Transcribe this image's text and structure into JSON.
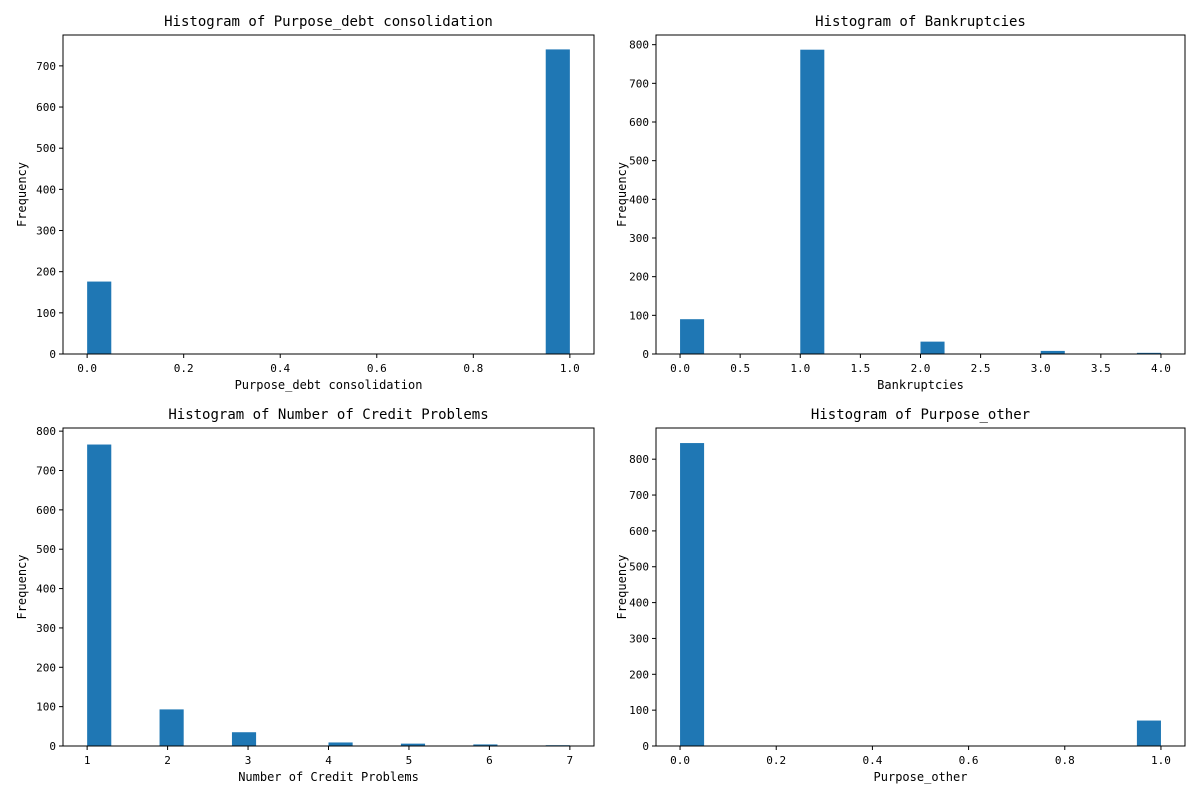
{
  "figure": {
    "bar_color": "#1f77b4"
  },
  "chart_data": [
    {
      "type": "bar",
      "title": "Histogram of Purpose_debt consolidation",
      "xlabel": "Purpose_debt consolidation",
      "ylabel": "Frequency",
      "xlim": [
        -0.05,
        1.05
      ],
      "ylim": [
        0,
        775
      ],
      "xticks": [
        0.0,
        0.2,
        0.4,
        0.6,
        0.8,
        1.0
      ],
      "xtick_labels": [
        "0.0",
        "0.2",
        "0.4",
        "0.6",
        "0.8",
        "1.0"
      ],
      "yticks": [
        0,
        100,
        200,
        300,
        400,
        500,
        600,
        700
      ],
      "ytick_labels": [
        "0",
        "100",
        "200",
        "300",
        "400",
        "500",
        "600",
        "700"
      ],
      "bins": [
        {
          "start": 0.0,
          "end": 0.05,
          "value": 176
        },
        {
          "start": 0.95,
          "end": 1.0,
          "value": 740
        }
      ],
      "grid": false
    },
    {
      "type": "bar",
      "title": "Histogram of Bankruptcies",
      "xlabel": "Bankruptcies",
      "ylabel": "Frequency",
      "xlim": [
        -0.2,
        4.2
      ],
      "ylim": [
        0,
        825
      ],
      "xticks": [
        0.0,
        0.5,
        1.0,
        1.5,
        2.0,
        2.5,
        3.0,
        3.5,
        4.0
      ],
      "xtick_labels": [
        "0.0",
        "0.5",
        "1.0",
        "1.5",
        "2.0",
        "2.5",
        "3.0",
        "3.5",
        "4.0"
      ],
      "yticks": [
        0,
        100,
        200,
        300,
        400,
        500,
        600,
        700,
        800
      ],
      "ytick_labels": [
        "0",
        "100",
        "200",
        "300",
        "400",
        "500",
        "600",
        "700",
        "800"
      ],
      "bins": [
        {
          "start": 0.0,
          "end": 0.2,
          "value": 90
        },
        {
          "start": 1.0,
          "end": 1.2,
          "value": 787
        },
        {
          "start": 2.0,
          "end": 2.2,
          "value": 32
        },
        {
          "start": 3.0,
          "end": 3.2,
          "value": 8
        },
        {
          "start": 3.8,
          "end": 4.0,
          "value": 3
        }
      ],
      "grid": false
    },
    {
      "type": "bar",
      "title": "Histogram of Number of Credit Problems",
      "xlabel": "Number of Credit Problems",
      "ylabel": "Frequency",
      "xlim": [
        0.7,
        7.3
      ],
      "ylim": [
        0,
        808
      ],
      "xticks": [
        1,
        2,
        3,
        4,
        5,
        6,
        7
      ],
      "xtick_labels": [
        "1",
        "2",
        "3",
        "4",
        "5",
        "6",
        "7"
      ],
      "yticks": [
        0,
        100,
        200,
        300,
        400,
        500,
        600,
        700,
        800
      ],
      "ytick_labels": [
        "0",
        "100",
        "200",
        "300",
        "400",
        "500",
        "600",
        "700",
        "800"
      ],
      "bins": [
        {
          "start": 1.0,
          "end": 1.3,
          "value": 766
        },
        {
          "start": 1.9,
          "end": 2.2,
          "value": 93
        },
        {
          "start": 2.8,
          "end": 3.1,
          "value": 35
        },
        {
          "start": 4.0,
          "end": 4.3,
          "value": 9
        },
        {
          "start": 4.9,
          "end": 5.2,
          "value": 6
        },
        {
          "start": 5.8,
          "end": 6.1,
          "value": 4
        },
        {
          "start": 6.7,
          "end": 7.0,
          "value": 2
        }
      ],
      "grid": false
    },
    {
      "type": "bar",
      "title": "Histogram of Purpose_other",
      "xlabel": "Purpose_other",
      "ylabel": "Frequency",
      "xlim": [
        -0.05,
        1.05
      ],
      "ylim": [
        0,
        887
      ],
      "xticks": [
        0.0,
        0.2,
        0.4,
        0.6,
        0.8,
        1.0
      ],
      "xtick_labels": [
        "0.0",
        "0.2",
        "0.4",
        "0.6",
        "0.8",
        "1.0"
      ],
      "yticks": [
        0,
        100,
        200,
        300,
        400,
        500,
        600,
        700,
        800
      ],
      "ytick_labels": [
        "0",
        "100",
        "200",
        "300",
        "400",
        "500",
        "600",
        "700",
        "800"
      ],
      "bins": [
        {
          "start": 0.0,
          "end": 0.05,
          "value": 845
        },
        {
          "start": 0.95,
          "end": 1.0,
          "value": 71
        }
      ],
      "grid": false
    }
  ]
}
